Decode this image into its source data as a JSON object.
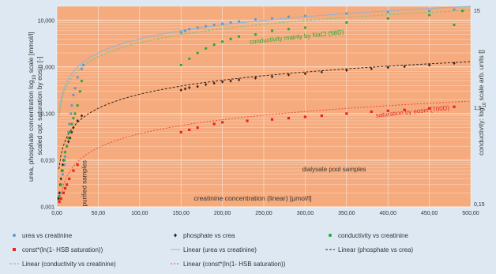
{
  "chart_data": {
    "type": "scatter",
    "xlabel": "creatinine concentration (linear) [µmol/l]",
    "ylabel_left_line1": "urea, phosphate concentration log",
    "ylabel_left_sub": "10",
    "ylabel_left_line1_tail": " scale [mmol/l]",
    "ylabel_left_line2": "scaled opt. saturation by eosin [-]",
    "ylabel_right_head": "conductivity: log",
    "ylabel_right_sub": "10",
    "ylabel_right_tail": " scale arb. units []",
    "x_ticks": [
      "0,00",
      "50,00",
      "100,00",
      "150,00",
      "200,00",
      "250,00",
      "300,00",
      "350,00",
      "400,00",
      "450,00",
      "500,00"
    ],
    "x_tick_values": [
      0,
      50,
      100,
      150,
      200,
      250,
      300,
      350,
      400,
      450,
      500
    ],
    "y_ticks": [
      "0,001",
      "0,010",
      "0,100",
      "1,000",
      "10,000"
    ],
    "y_tick_values": [
      0.001,
      0.01,
      0.1,
      1,
      10
    ],
    "y2_ticks": [
      "15",
      "1,5",
      "0,15"
    ],
    "y2_tick_values": [
      15,
      1.5,
      0.15
    ],
    "xlim": [
      0,
      500
    ],
    "ylim_log": [
      0.001,
      20
    ],
    "y_scale": "log",
    "grid": true,
    "legend_position": "bottom",
    "annotations": [
      {
        "text": "conductivity mainly by NaCl (58D)",
        "x": 290,
        "y": 4.0,
        "color": "#2aa832",
        "rotate": -6
      },
      {
        "text": "saturation by eosin (700D)",
        "x": 430,
        "y": 0.1,
        "color": "#e8231f",
        "rotate": -6
      },
      {
        "text": "purified samples",
        "x": 36,
        "y": 0.0032,
        "color": "#333333",
        "rotate": -90
      },
      {
        "text": "dialysate pool samples",
        "x": 335,
        "y": 0.0058,
        "color": "#333333",
        "rotate": 0
      }
    ],
    "series": [
      {
        "name": "urea vs creatinine",
        "color": "#5b9bd5",
        "marker": "circle",
        "x": [
          2,
          4,
          5,
          7,
          9,
          10,
          12,
          14,
          15,
          17,
          18,
          20,
          22,
          25,
          30,
          32,
          150,
          155,
          160,
          170,
          180,
          190,
          200,
          210,
          220,
          240,
          260,
          280,
          300,
          350,
          400,
          450,
          480
        ],
        "y": [
          0.0016,
          0.002,
          0.003,
          0.005,
          0.008,
          0.012,
          0.02,
          0.04,
          0.06,
          0.1,
          0.15,
          0.25,
          0.35,
          0.6,
          0.9,
          1.1,
          5.5,
          6.0,
          6.5,
          7.0,
          7.5,
          8.0,
          8.5,
          9.0,
          9.5,
          10.5,
          11.0,
          12.0,
          12.5,
          14.0,
          15.0,
          16.0,
          17.0
        ]
      },
      {
        "name": "phosphate vs crea",
        "color": "#3a2416",
        "marker": "diamond",
        "x": [
          2,
          3,
          4,
          5,
          6,
          7,
          8,
          10,
          12,
          14,
          16,
          18,
          20,
          25,
          30,
          150,
          155,
          160,
          170,
          180,
          190,
          200,
          210,
          220,
          240,
          260,
          280,
          300,
          320,
          350,
          380,
          400,
          420,
          450,
          480
        ],
        "y": [
          0.0015,
          0.002,
          0.003,
          0.004,
          0.006,
          0.008,
          0.01,
          0.015,
          0.02,
          0.025,
          0.03,
          0.04,
          0.05,
          0.07,
          0.09,
          0.32,
          0.34,
          0.36,
          0.38,
          0.42,
          0.45,
          0.48,
          0.5,
          0.53,
          0.58,
          0.62,
          0.68,
          0.72,
          0.78,
          0.85,
          0.92,
          0.98,
          1.02,
          1.1,
          1.2
        ]
      },
      {
        "name": "conductivity vs creatinine",
        "color": "#2aa832",
        "marker": "circle",
        "x": [
          3,
          5,
          7,
          9,
          10,
          12,
          14,
          16,
          18,
          20,
          22,
          25,
          28,
          30,
          150,
          160,
          170,
          180,
          190,
          200,
          210,
          220,
          240,
          260,
          280,
          300,
          350,
          400,
          450,
          480,
          490
        ],
        "y": [
          0.0017,
          0.003,
          0.006,
          0.01,
          0.015,
          0.02,
          0.03,
          0.04,
          0.06,
          0.08,
          0.1,
          0.15,
          0.3,
          0.5,
          1.1,
          1.5,
          2.0,
          2.5,
          3.0,
          3.5,
          4.0,
          4.5,
          5.0,
          6.0,
          6.5,
          7.0,
          9.0,
          11.0,
          13.0,
          8.0,
          16.0
        ]
      },
      {
        "name": "const*(ln(1- HSB saturation))",
        "color": "#e8231f",
        "marker": "square",
        "x": [
          3,
          5,
          8,
          10,
          12,
          15,
          20,
          25,
          150,
          160,
          170,
          190,
          200,
          230,
          260,
          280,
          300,
          320,
          350,
          380,
          400,
          420,
          450,
          480
        ],
        "y": [
          0.0013,
          0.0015,
          0.002,
          0.0025,
          0.003,
          0.004,
          0.006,
          0.008,
          0.04,
          0.045,
          0.05,
          0.06,
          0.065,
          0.07,
          0.075,
          0.08,
          0.085,
          0.09,
          0.1,
          0.11,
          0.115,
          0.12,
          0.13,
          0.14
        ]
      }
    ],
    "trendlines": [
      {
        "name": "Linear (urea vs creatinine)",
        "color": "#8fb3d9",
        "dash": "",
        "a": 0.04,
        "power": 1.0
      },
      {
        "name": "Linear (phosphate vs crea)",
        "color": "#3a2416",
        "dash": "3,2",
        "a": 0.0026,
        "power": 1.0
      },
      {
        "name": "Linear (conductivity vs creatinine)",
        "color": "#7bc576",
        "dash": "3,2",
        "a": 0.033,
        "power": 1.0
      },
      {
        "name": "Linear (const*(ln(1- HSB saturation))",
        "color": "#f04a3a",
        "dash": "2,2",
        "a": 0.00037,
        "power": 1.0
      }
    ],
    "legend": [
      {
        "label": "urea vs creatinine",
        "kind": "marker",
        "color": "#5b9bd5",
        "marker": "circle"
      },
      {
        "label": "phosphate vs crea",
        "kind": "marker",
        "color": "#3a2416",
        "marker": "diamond"
      },
      {
        "label": "conductivity vs creatinine",
        "kind": "marker",
        "color": "#2aa832",
        "marker": "circle"
      },
      {
        "label": "const*(ln(1- HSB saturation))",
        "kind": "marker",
        "color": "#e8231f",
        "marker": "square"
      },
      {
        "label": "Linear (urea vs creatinine)",
        "kind": "line",
        "color": "#8fb3d9",
        "dash": ""
      },
      {
        "label": "Linear (phosphate vs crea)",
        "kind": "line",
        "color": "#3a2416",
        "dash": "3,2"
      },
      {
        "label": "Linear (conductivity vs creatinine)",
        "kind": "line",
        "color": "#7bc576",
        "dash": "3,2"
      },
      {
        "label": "Linear (const*(ln(1- HSB saturation))",
        "kind": "line",
        "color": "#f04a3a",
        "dash": "2,2"
      }
    ],
    "colors": {
      "plot_background": "#f5ab7d",
      "grid": "#ffffff",
      "page_background": "#dde8f3",
      "legend_background": "#dde8f3"
    }
  }
}
